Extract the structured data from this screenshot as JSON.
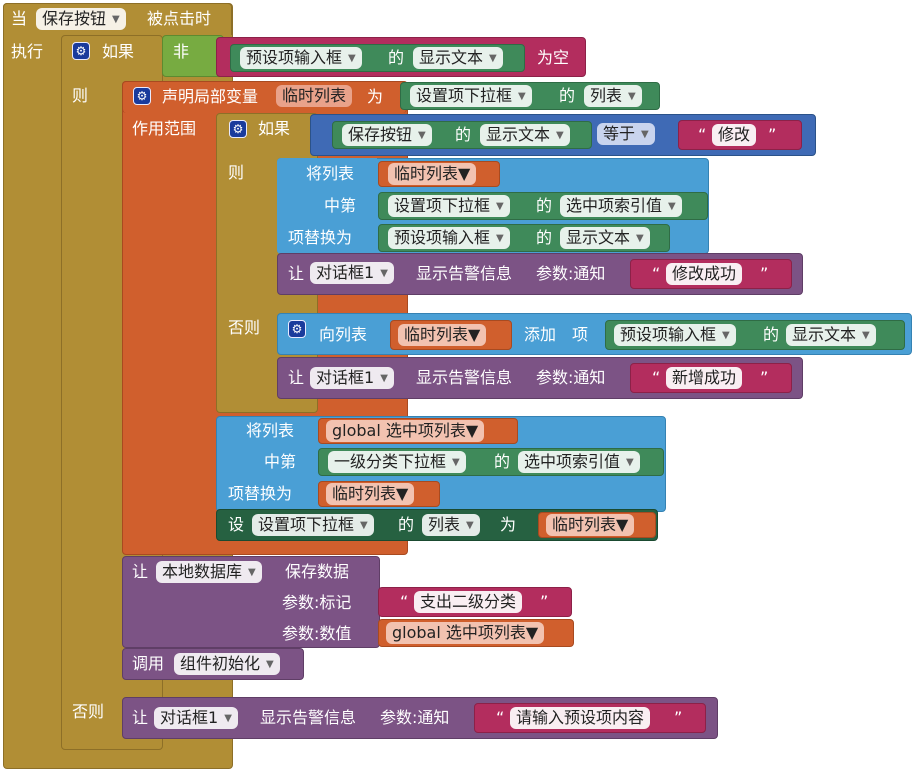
{
  "event": {
    "when": "当",
    "component": "保存按钮",
    "clicked": "被点击时",
    "do": "执行"
  },
  "outer_if": {
    "if": "如果",
    "not": "非",
    "component": "预设项输入框",
    "of": "的",
    "prop": "显示文本",
    "is_empty": "为空",
    "then": "则",
    "else": "否则"
  },
  "local_var": {
    "declare": "声明局部变量",
    "name": "临时列表",
    "as": "为",
    "component": "设置项下拉框",
    "of": "的",
    "prop": "列表",
    "scope": "作用范围"
  },
  "inner_if": {
    "if": "如果",
    "component": "保存按钮",
    "of": "的",
    "prop": "显示文本",
    "op": "等于",
    "string": "修改",
    "then": "则",
    "else": "否则"
  },
  "replace1": {
    "label_list": "将列表",
    "var": "临时列表",
    "label_index": "中第",
    "idx_component": "设置项下拉框",
    "of": "的",
    "idx_prop": "选中项索引值",
    "label_replace": "项替换为",
    "val_component": "预设项输入框",
    "of2": "的",
    "val_prop": "显示文本"
  },
  "alert_modified": {
    "call": "让",
    "component": "对话框1",
    "method": "显示告警信息",
    "param": "参数:通知",
    "string": "修改成功"
  },
  "add_item": {
    "label": "向列表",
    "var": "临时列表",
    "add": "添加",
    "item": "项",
    "component": "预设项输入框",
    "of": "的",
    "prop": "显示文本"
  },
  "alert_added": {
    "call": "让",
    "component": "对话框1",
    "method": "显示告警信息",
    "param": "参数:通知",
    "string": "新增成功"
  },
  "replace2": {
    "label_list": "将列表",
    "var": "global 选中项列表",
    "label_index": "中第",
    "idx_component": "一级分类下拉框",
    "of": "的",
    "idx_prop": "选中项索引值",
    "label_replace": "项替换为",
    "val_var": "临时列表"
  },
  "set_elements": {
    "set": "设",
    "component": "设置项下拉框",
    "of": "的",
    "prop": "列表",
    "to": "为",
    "var": "临时列表"
  },
  "store": {
    "call": "让",
    "component": "本地数据库",
    "method": "保存数据",
    "tag_label": "参数:标记",
    "tag": "支出二级分类",
    "value_label": "参数:数值",
    "value": "global 选中项列表"
  },
  "call_init": {
    "call": "调用",
    "proc": "组件初始化"
  },
  "alert_input": {
    "call": "让",
    "component": "对话框1",
    "method": "显示告警信息",
    "param": "参数:通知",
    "string": "请输入预设项内容"
  },
  "quote_open": "“",
  "quote_close": "”",
  "icons": {
    "mutator": "gear-icon",
    "dropdown": "chevron-down-icon"
  }
}
